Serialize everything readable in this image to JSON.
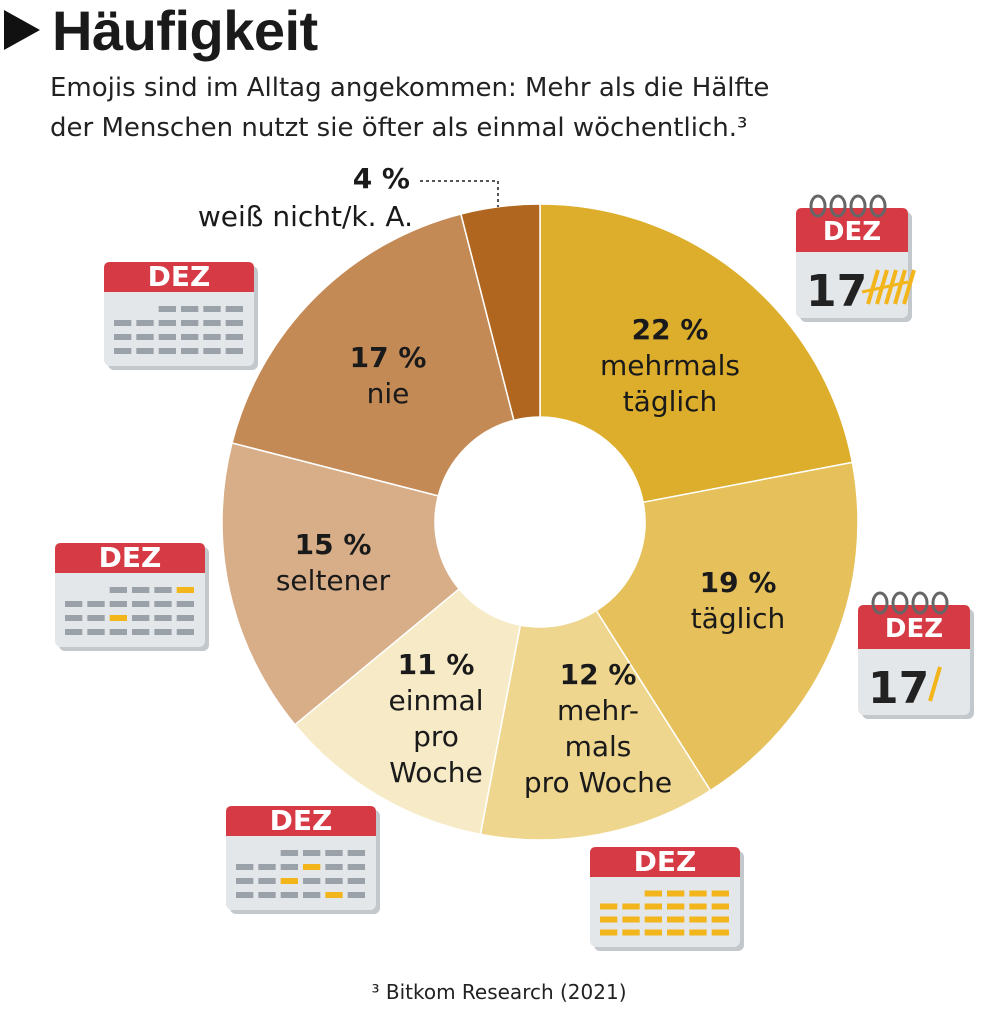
{
  "header": {
    "title": "Häufigkeit",
    "subtitle_line1": "Emojis sind im Alltag angekommen: Mehr als die Hälfte",
    "subtitle_line2": "der Menschen nutzt sie öfter als einmal wöchentlich.³"
  },
  "footnote": "³ Bitkom Research (2021)",
  "chart_data": {
    "type": "pie",
    "title": "Häufigkeit",
    "variant": "donut",
    "slices": [
      {
        "pct_label": "22 %",
        "value": 22,
        "lines": [
          "mehrmals",
          "täglich"
        ],
        "color": "#DDAE2C"
      },
      {
        "pct_label": "19 %",
        "value": 19,
        "lines": [
          "täglich"
        ],
        "color": "#E6C05A"
      },
      {
        "pct_label": "12 %",
        "value": 12,
        "lines": [
          "mehr-",
          "mals",
          "pro Woche"
        ],
        "color": "#EFD68E"
      },
      {
        "pct_label": "11 %",
        "value": 11,
        "lines": [
          "einmal",
          "pro",
          "Woche"
        ],
        "color": "#F7EAC6"
      },
      {
        "pct_label": "15 %",
        "value": 15,
        "lines": [
          "seltener"
        ],
        "color": "#D7AE88"
      },
      {
        "pct_label": "17 %",
        "value": 17,
        "lines": [
          "nie"
        ],
        "color": "#C48A55"
      },
      {
        "pct_label": "4 %",
        "value": 4,
        "lines": [
          "weiß nicht/k. A."
        ],
        "color": "#B1661F"
      }
    ]
  },
  "calendar_icons": [
    {
      "name": "calendar-tally-icon",
      "month": "DEZ",
      "day": "17"
    },
    {
      "name": "calendar-slash-icon",
      "month": "DEZ",
      "day": "17"
    },
    {
      "name": "calendar-weekly-many-icon",
      "month": "DEZ"
    },
    {
      "name": "calendar-weekly-once-icon",
      "month": "DEZ"
    },
    {
      "name": "calendar-rare-icon",
      "month": "DEZ"
    },
    {
      "name": "calendar-blank-icon",
      "month": "DEZ"
    }
  ],
  "colors": {
    "calendar_red": "#D63B45",
    "calendar_body": "#E4E7EA",
    "grid": "#9AA1A8",
    "highlight": "#F2B51B"
  }
}
